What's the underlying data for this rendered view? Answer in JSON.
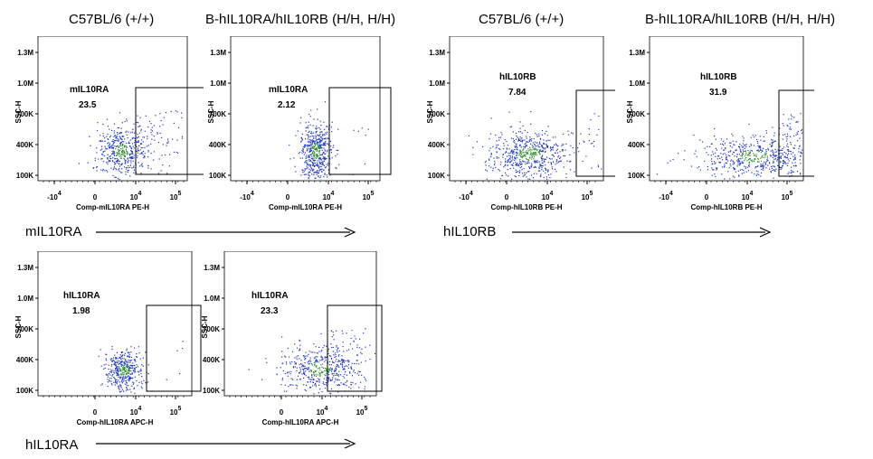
{
  "column_titles": [
    "C57BL/6 (+/+)",
    "B-hIL10RA/hIL10RB (H/H, H/H)",
    "C57BL/6 (+/+)",
    "B-hIL10RA/hIL10RB (H/H, H/H)"
  ],
  "row_labels": [
    "mIL10RA",
    "hIL10RB",
    "hIL10RA"
  ],
  "colors": {
    "dots": "#1e36c8",
    "dense": "#2e8b2e",
    "frame": "#000000"
  },
  "chart_data": [
    {
      "type": "scatter",
      "id": "p1",
      "gate_name": "mIL10RA",
      "gate_value": "23.5",
      "ylabel": "SSC-H",
      "xlabel": "Comp-mIL10RA PE-H",
      "yticks": [
        "1.3M",
        "1.0M",
        "700K",
        "400K",
        "100K"
      ],
      "xticks": [
        "-10^4",
        "0",
        "10^4",
        "10^5"
      ],
      "percent_in_gate": 23.5
    },
    {
      "type": "scatter",
      "id": "p2",
      "gate_name": "mIL10RA",
      "gate_value": "2.12",
      "ylabel": "SSC-H",
      "xlabel": "Comp-mIL10RA PE-H",
      "yticks": [
        "1.3M",
        "1.0M",
        "700K",
        "400K",
        "100K"
      ],
      "xticks": [
        "-10^4",
        "0",
        "10^4",
        "10^5"
      ],
      "percent_in_gate": 2.12
    },
    {
      "type": "scatter",
      "id": "p3",
      "gate_name": "hIL10RB",
      "gate_value": "7.84",
      "ylabel": "SSC-H",
      "xlabel": "Comp-hIL10RB PE-H",
      "yticks": [
        "1.3M",
        "1.0M",
        "700K",
        "400K",
        "100K"
      ],
      "xticks": [
        "-10^4",
        "0",
        "10^4",
        "10^5"
      ],
      "percent_in_gate": 7.84
    },
    {
      "type": "scatter",
      "id": "p4",
      "gate_name": "hIL10RB",
      "gate_value": "31.9",
      "ylabel": "SSC-H",
      "xlabel": "Comp-hIL10RB PE-H",
      "yticks": [
        "1.3M",
        "1.0M",
        "700K",
        "400K",
        "100K"
      ],
      "xticks": [
        "-10^4",
        "0",
        "10^4",
        "10^5"
      ],
      "percent_in_gate": 31.9
    },
    {
      "type": "scatter",
      "id": "p5",
      "gate_name": "hIL10RA",
      "gate_value": "1.98",
      "ylabel": "SSC-H",
      "xlabel": "Comp-hIL10RA APC-H",
      "yticks": [
        "1.3M",
        "1.0M",
        "700K",
        "400K",
        "100K"
      ],
      "xticks": [
        "0",
        "10^4",
        "10^5"
      ],
      "percent_in_gate": 1.98
    },
    {
      "type": "scatter",
      "id": "p6",
      "gate_name": "hIL10RA",
      "gate_value": "23.3",
      "ylabel": "SSC-H",
      "xlabel": "Comp-hIL10RA APC-H",
      "yticks": [
        "1.3M",
        "1.0M",
        "700K",
        "400K",
        "100K"
      ],
      "xticks": [
        "0",
        "10^4",
        "10^5"
      ],
      "percent_in_gate": 23.3
    }
  ]
}
